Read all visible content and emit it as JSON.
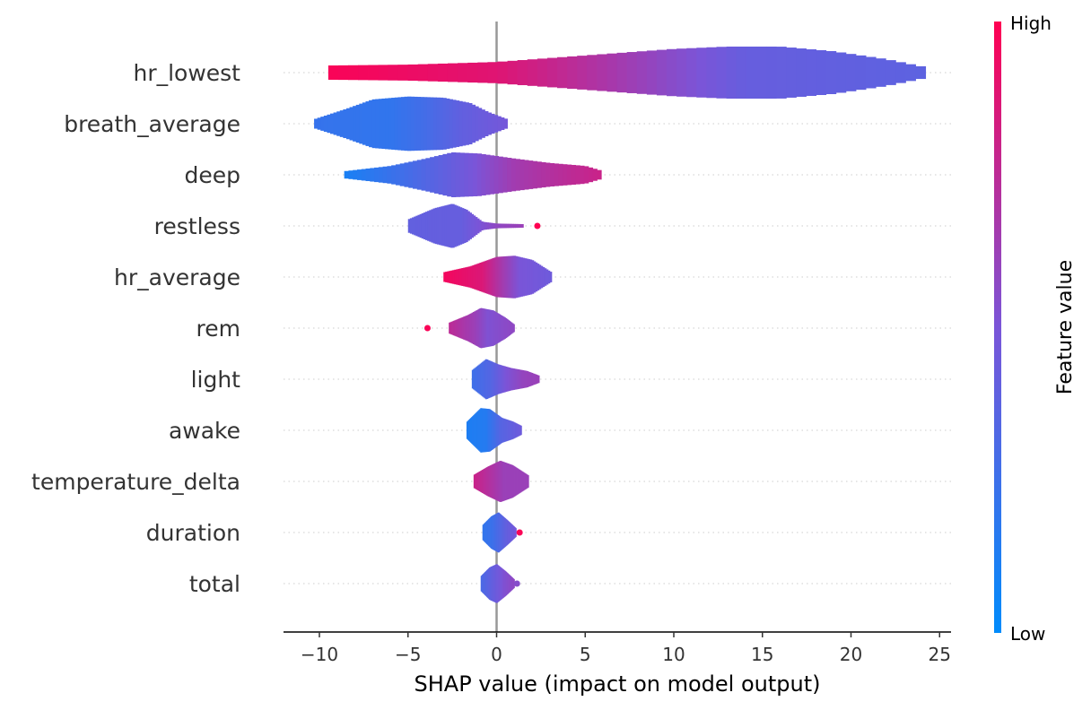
{
  "chart_data": {
    "type": "violin",
    "title": "",
    "xlabel": "SHAP value (impact on model output)",
    "xlim": [
      -12,
      26
    ],
    "xticks": [
      -10,
      -5,
      0,
      5,
      10,
      15,
      20,
      25
    ],
    "xtick_labels": [
      "−10",
      "−5",
      "0",
      "5",
      "10",
      "15",
      "20",
      "25"
    ],
    "features": [
      {
        "name": "hr_lowest",
        "min": -9.5,
        "max": 24.2,
        "density": [
          [
            -9.5,
            0.24
          ],
          [
            -5,
            0.27
          ],
          [
            0,
            0.36
          ],
          [
            5,
            0.58
          ],
          [
            10,
            0.8
          ],
          [
            13,
            0.88
          ],
          [
            16,
            0.88
          ],
          [
            19,
            0.72
          ],
          [
            22,
            0.45
          ],
          [
            24.2,
            0.18
          ]
        ],
        "colors": [
          [
            -9.5,
            0.98
          ],
          [
            0,
            0.88
          ],
          [
            5,
            0.72
          ],
          [
            10,
            0.55
          ],
          [
            14,
            0.42
          ],
          [
            24.2,
            0.38
          ]
        ],
        "outliers": []
      },
      {
        "name": "breath_average",
        "min": -10.3,
        "max": 0.6,
        "density": [
          [
            -10.3,
            0.15
          ],
          [
            -8.5,
            0.5
          ],
          [
            -7,
            0.82
          ],
          [
            -5,
            0.92
          ],
          [
            -3,
            0.88
          ],
          [
            -1.5,
            0.7
          ],
          [
            -0.5,
            0.4
          ],
          [
            0.6,
            0.15
          ]
        ],
        "colors": [
          [
            -10.3,
            0.22
          ],
          [
            -6,
            0.2
          ],
          [
            -4,
            0.28
          ],
          [
            -2,
            0.4
          ],
          [
            0.6,
            0.48
          ]
        ],
        "outliers": []
      },
      {
        "name": "deep",
        "min": -8.6,
        "max": 5.9,
        "density": [
          [
            -8.6,
            0.12
          ],
          [
            -6,
            0.3
          ],
          [
            -4,
            0.55
          ],
          [
            -2.5,
            0.76
          ],
          [
            -1,
            0.72
          ],
          [
            1,
            0.55
          ],
          [
            3,
            0.4
          ],
          [
            5,
            0.3
          ],
          [
            5.9,
            0.14
          ]
        ],
        "colors": [
          [
            -8.6,
            0.1
          ],
          [
            -5,
            0.28
          ],
          [
            -2,
            0.45
          ],
          [
            1,
            0.65
          ],
          [
            5.9,
            0.8
          ]
        ],
        "outliers": []
      },
      {
        "name": "restless",
        "min": -5,
        "max": 1.5,
        "density": [
          [
            -5,
            0.22
          ],
          [
            -3.5,
            0.6
          ],
          [
            -2.5,
            0.75
          ],
          [
            -1.7,
            0.55
          ],
          [
            -0.8,
            0.14
          ],
          [
            0,
            0.08
          ],
          [
            1.5,
            0.06
          ]
        ],
        "colors": [
          [
            -5,
            0.4
          ],
          [
            -2,
            0.42
          ],
          [
            0,
            0.58
          ],
          [
            1.5,
            0.62
          ]
        ],
        "outliers": [
          {
            "x": 2.3,
            "v": 1.0
          }
        ]
      },
      {
        "name": "hr_average",
        "min": -3,
        "max": 3.1,
        "density": [
          [
            -3,
            0.16
          ],
          [
            -1.5,
            0.36
          ],
          [
            0,
            0.68
          ],
          [
            1,
            0.72
          ],
          [
            2,
            0.58
          ],
          [
            3.1,
            0.16
          ]
        ],
        "colors": [
          [
            -3,
            0.96
          ],
          [
            -0.8,
            0.86
          ],
          [
            0.3,
            0.66
          ],
          [
            1.3,
            0.5
          ],
          [
            3.1,
            0.45
          ]
        ],
        "outliers": []
      },
      {
        "name": "rem",
        "min": -2.7,
        "max": 1.0,
        "density": [
          [
            -2.7,
            0.18
          ],
          [
            -1.6,
            0.45
          ],
          [
            -0.9,
            0.68
          ],
          [
            -0.2,
            0.6
          ],
          [
            0.5,
            0.35
          ],
          [
            1.0,
            0.12
          ]
        ],
        "colors": [
          [
            -2.7,
            0.75
          ],
          [
            -1.2,
            0.62
          ],
          [
            -0.5,
            0.52
          ],
          [
            1.0,
            0.58
          ]
        ],
        "outliers": [
          {
            "x": -3.9,
            "v": 0.98
          }
        ]
      },
      {
        "name": "light",
        "min": -1.4,
        "max": 2.4,
        "density": [
          [
            -1.4,
            0.3
          ],
          [
            -0.6,
            0.68
          ],
          [
            0.1,
            0.5
          ],
          [
            0.8,
            0.38
          ],
          [
            1.7,
            0.28
          ],
          [
            2.4,
            0.12
          ]
        ],
        "colors": [
          [
            -1.4,
            0.25
          ],
          [
            -0.3,
            0.35
          ],
          [
            0.5,
            0.5
          ],
          [
            1.5,
            0.6
          ],
          [
            2.4,
            0.62
          ]
        ],
        "outliers": []
      },
      {
        "name": "awake",
        "min": -1.7,
        "max": 1.4,
        "density": [
          [
            -1.7,
            0.28
          ],
          [
            -0.9,
            0.75
          ],
          [
            -0.4,
            0.72
          ],
          [
            0.3,
            0.42
          ],
          [
            0.9,
            0.3
          ],
          [
            1.4,
            0.15
          ]
        ],
        "colors": [
          [
            -1.7,
            0.12
          ],
          [
            -0.6,
            0.15
          ],
          [
            0.2,
            0.35
          ],
          [
            1.4,
            0.45
          ]
        ],
        "outliers": []
      },
      {
        "name": "temperature_delta",
        "min": -1.3,
        "max": 1.8,
        "density": [
          [
            -1.3,
            0.22
          ],
          [
            -0.5,
            0.5
          ],
          [
            0.2,
            0.7
          ],
          [
            0.9,
            0.55
          ],
          [
            1.8,
            0.2
          ]
        ],
        "colors": [
          [
            -1.3,
            0.8
          ],
          [
            -0.5,
            0.72
          ],
          [
            0.4,
            0.62
          ],
          [
            1.8,
            0.62
          ]
        ],
        "outliers": []
      },
      {
        "name": "duration",
        "min": -0.8,
        "max": 1.1,
        "density": [
          [
            -0.8,
            0.25
          ],
          [
            -0.3,
            0.55
          ],
          [
            0.1,
            0.68
          ],
          [
            0.6,
            0.42
          ],
          [
            1.1,
            0.14
          ]
        ],
        "colors": [
          [
            -0.8,
            0.2
          ],
          [
            -0.2,
            0.25
          ],
          [
            0.5,
            0.4
          ],
          [
            1.1,
            0.48
          ]
        ],
        "outliers": [
          {
            "x": 1.3,
            "v": 0.98
          }
        ]
      },
      {
        "name": "total",
        "min": -0.9,
        "max": 1.0,
        "density": [
          [
            -0.9,
            0.25
          ],
          [
            -0.4,
            0.55
          ],
          [
            0.0,
            0.66
          ],
          [
            0.5,
            0.42
          ],
          [
            1.0,
            0.14
          ]
        ],
        "colors": [
          [
            -0.9,
            0.3
          ],
          [
            -0.3,
            0.4
          ],
          [
            0.4,
            0.52
          ],
          [
            1.0,
            0.58
          ]
        ],
        "outliers": [
          {
            "x": 1.15,
            "v": 0.55
          }
        ]
      }
    ],
    "colorbar": {
      "label": "Feature value",
      "high_label": "High",
      "low_label": "Low",
      "low_color": "#008bfb",
      "mid_color": "#7a55d8",
      "high_color": "#ff0052"
    }
  }
}
